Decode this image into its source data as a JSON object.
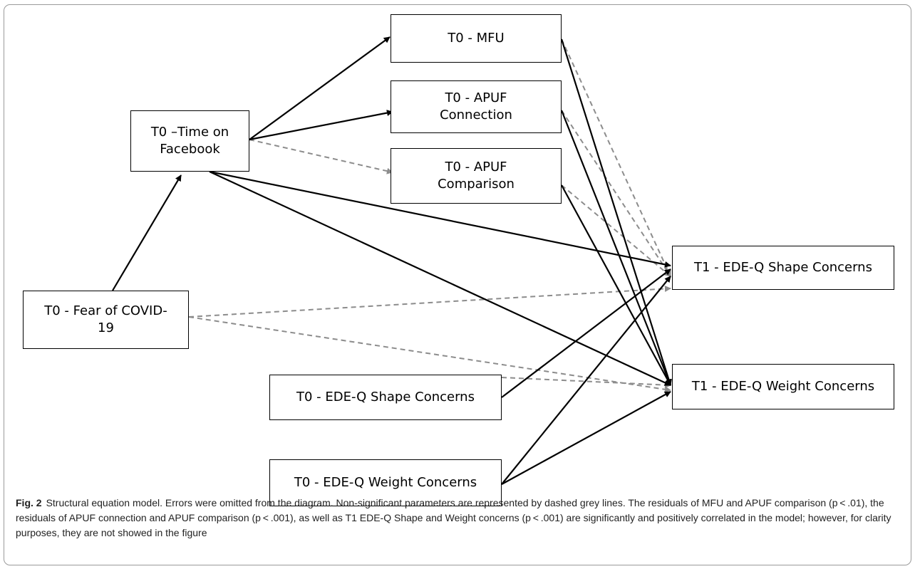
{
  "nodes": {
    "t0_mfu": "T0 - MFU",
    "t0_apuf_connection": "T0 - APUF\nConnection",
    "t0_apuf_comparison": "T0 - APUF\nComparison",
    "t0_time_on_facebook": "T0 –Time on\nFacebook",
    "t0_fear_of_covid": "T0 - Fear of COVID-\n19",
    "t0_edeq_shape": "T0 - EDE-Q Shape Concerns",
    "t0_edeq_weight": "T0 - EDE-Q Weight Concerns",
    "t1_edeq_shape": "T1 - EDE-Q Shape Concerns",
    "t1_edeq_weight": "T1 - EDE-Q Weight Concerns"
  },
  "legend": {
    "significant_color": "#000000",
    "nonsignificant_color": "#8c8c8c"
  },
  "paths": [
    {
      "from": "t0_fear_of_covid",
      "to": "t0_time_on_facebook",
      "significant": true
    },
    {
      "from": "t0_time_on_facebook",
      "to": "t0_mfu",
      "significant": true
    },
    {
      "from": "t0_time_on_facebook",
      "to": "t0_apuf_connection",
      "significant": true
    },
    {
      "from": "t0_time_on_facebook",
      "to": "t0_apuf_comparison",
      "significant": false
    },
    {
      "from": "t0_time_on_facebook",
      "to": "t1_edeq_shape",
      "significant": true
    },
    {
      "from": "t0_time_on_facebook",
      "to": "t1_edeq_weight",
      "significant": true
    },
    {
      "from": "t0_mfu",
      "to": "t1_edeq_shape",
      "significant": false
    },
    {
      "from": "t0_mfu",
      "to": "t1_edeq_weight",
      "significant": true
    },
    {
      "from": "t0_apuf_connection",
      "to": "t1_edeq_shape",
      "significant": false
    },
    {
      "from": "t0_apuf_connection",
      "to": "t1_edeq_weight",
      "significant": true
    },
    {
      "from": "t0_apuf_comparison",
      "to": "t1_edeq_shape",
      "significant": false
    },
    {
      "from": "t0_apuf_comparison",
      "to": "t1_edeq_weight",
      "significant": true
    },
    {
      "from": "t0_fear_of_covid",
      "to": "t1_edeq_shape",
      "significant": false
    },
    {
      "from": "t0_fear_of_covid",
      "to": "t1_edeq_weight",
      "significant": false
    },
    {
      "from": "t0_edeq_shape",
      "to": "t1_edeq_shape",
      "significant": true
    },
    {
      "from": "t0_edeq_shape",
      "to": "t1_edeq_weight",
      "significant": false
    },
    {
      "from": "t0_edeq_weight",
      "to": "t1_edeq_shape",
      "significant": true
    },
    {
      "from": "t0_edeq_weight",
      "to": "t1_edeq_weight",
      "significant": true
    }
  ],
  "caption": {
    "label": "Fig. 2",
    "text": "Structural equation model. Errors were omitted from the diagram. Non-significant parameters are represented by dashed grey lines. The residuals of MFU and APUF comparison (p < .01), the residuals of APUF connection and APUF comparison (p < .001), as well as T1 EDE-Q Shape and Weight concerns (p < .001) are significantly and positively correlated in the model; however, for clarity purposes, they are not showed in the figure"
  }
}
